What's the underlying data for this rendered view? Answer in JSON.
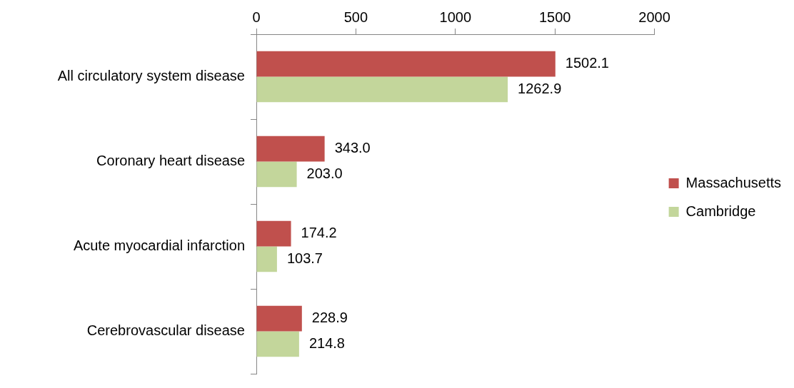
{
  "chart_data": {
    "type": "bar",
    "orientation": "horizontal",
    "categories": [
      "All circulatory system disease",
      "Coronary heart disease",
      "Acute myocardial infarction",
      "Cerebrovascular disease"
    ],
    "series": [
      {
        "name": "Massachusetts",
        "color": "#c0504d",
        "values": [
          1502.1,
          343.0,
          174.2,
          228.9
        ],
        "value_labels": [
          "1502.1",
          "343.0",
          "174.2",
          "228.9"
        ]
      },
      {
        "name": "Cambridge",
        "color": "#c3d69b",
        "values": [
          1262.9,
          203.0,
          103.7,
          214.8
        ],
        "value_labels": [
          "1262.9",
          "203.0",
          "103.7",
          "214.8"
        ]
      }
    ],
    "xlim": [
      0,
      2000
    ],
    "xticks": [
      0,
      500,
      1000,
      1500,
      2000
    ],
    "grid": false,
    "legend": "right"
  }
}
